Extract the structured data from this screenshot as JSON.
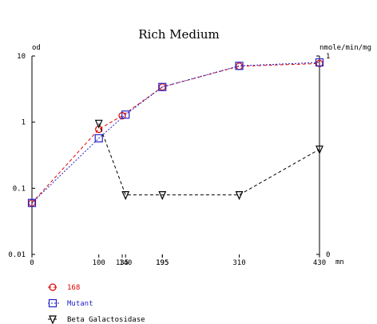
{
  "chart_data": {
    "type": "line",
    "title": "Rich Medium",
    "y_left_label": "od",
    "y_right_label": "nmole/min/mg",
    "x_unit_label": "mn",
    "x_range": [
      0,
      430
    ],
    "y_left_scale": "log",
    "y_left_range": [
      0.01,
      10
    ],
    "y_left_ticks": [
      "0.01",
      "0.1",
      "1",
      "10"
    ],
    "y_left_tick_values": [
      0.01,
      0.1,
      1,
      10
    ],
    "y_right_range": [
      0,
      1
    ],
    "y_right_ticks": [
      "0",
      "1"
    ],
    "y_right_tick_values": [
      0,
      1
    ],
    "x_ticks": [
      "0",
      "100",
      "135",
      "140",
      "195",
      "195",
      "310",
      "430"
    ],
    "x_tick_values": [
      0,
      100,
      135,
      140,
      195,
      195,
      310,
      430
    ],
    "grid": false,
    "legend_position": "bottom-left",
    "series": [
      {
        "name": "168",
        "marker": "circle",
        "line": "dashed",
        "color": "#dd0000",
        "axis": "left",
        "x": [
          0,
          100,
          135,
          195,
          310,
          430
        ],
        "y": [
          0.06,
          0.78,
          1.25,
          3.4,
          7.0,
          7.7
        ]
      },
      {
        "name": "Mutant",
        "marker": "square",
        "line": "dotted",
        "color": "#2222cc",
        "axis": "left",
        "x": [
          0,
          100,
          140,
          195,
          310,
          430
        ],
        "y": [
          0.06,
          0.57,
          1.3,
          3.4,
          7.1,
          8.0
        ]
      },
      {
        "name": "Beta Galactosidase",
        "marker": "triangle-down",
        "line": "dashed",
        "color": "#000000",
        "axis": "right",
        "x": [
          100,
          140,
          195,
          310,
          430
        ],
        "y": [
          0.66,
          0.3,
          0.3,
          0.3,
          0.53
        ]
      }
    ]
  }
}
